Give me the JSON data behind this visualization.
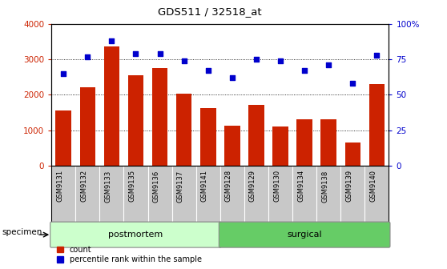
{
  "title": "GDS511 / 32518_at",
  "categories": [
    "GSM9131",
    "GSM9132",
    "GSM9133",
    "GSM9135",
    "GSM9136",
    "GSM9137",
    "GSM9141",
    "GSM9128",
    "GSM9129",
    "GSM9130",
    "GSM9134",
    "GSM9138",
    "GSM9139",
    "GSM9140"
  ],
  "counts": [
    1550,
    2220,
    3380,
    2550,
    2760,
    2030,
    1620,
    1115,
    1720,
    1105,
    1310,
    1310,
    650,
    2310
  ],
  "percentiles": [
    65,
    77,
    88,
    79,
    79,
    74,
    67,
    62,
    75,
    74,
    67,
    71,
    58,
    78
  ],
  "bar_color": "#cc2200",
  "dot_color": "#0000cc",
  "ylim_left": [
    0,
    4000
  ],
  "ylim_right": [
    0,
    100
  ],
  "yticks_left": [
    0,
    1000,
    2000,
    3000,
    4000
  ],
  "yticks_right": [
    0,
    25,
    50,
    75,
    100
  ],
  "ytick_labels_left": [
    "0",
    "1000",
    "2000",
    "3000",
    "4000"
  ],
  "ytick_labels_right": [
    "0",
    "25",
    "50",
    "75",
    "100%"
  ],
  "groups": [
    {
      "label": "postmortem",
      "start": 0,
      "end": 6,
      "color": "#ccffcc",
      "border": "#aaddaa"
    },
    {
      "label": "surgical",
      "start": 7,
      "end": 13,
      "color": "#66cc66",
      "border": "#44aa44"
    }
  ],
  "specimen_label": "specimen",
  "legend_count_label": "count",
  "legend_percentile_label": "percentile rank within the sample",
  "background_color": "#ffffff",
  "tick_area_color": "#c8c8c8"
}
